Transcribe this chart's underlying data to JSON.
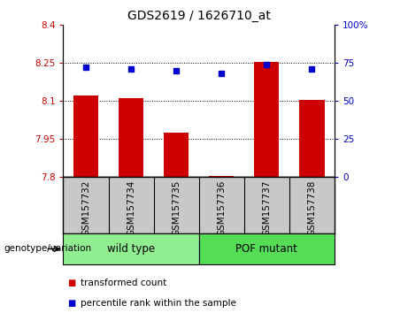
{
  "title": "GDS2619 / 1626710_at",
  "samples": [
    "GSM157732",
    "GSM157734",
    "GSM157735",
    "GSM157736",
    "GSM157737",
    "GSM157738"
  ],
  "transformed_counts": [
    8.12,
    8.11,
    7.975,
    7.805,
    8.255,
    8.105
  ],
  "percentile_ranks": [
    72,
    71,
    70,
    68,
    74,
    71
  ],
  "ylim_left": [
    7.8,
    8.4
  ],
  "ylim_right": [
    0,
    100
  ],
  "yticks_left": [
    7.8,
    7.95,
    8.1,
    8.25,
    8.4
  ],
  "yticks_right": [
    0,
    25,
    50,
    75,
    100
  ],
  "ytick_labels_left": [
    "7.8",
    "7.95",
    "8.1",
    "8.25",
    "8.4"
  ],
  "ytick_labels_right": [
    "0",
    "25",
    "50",
    "75",
    "100%"
  ],
  "bar_color": "#CC0000",
  "dot_color": "#0000CC",
  "bar_bottom": 7.8,
  "grid_lines": [
    7.95,
    8.1,
    8.25
  ],
  "tick_label_area_color": "#c8c8c8",
  "group_box_color": "#90EE90",
  "group_box_color_2": "#55DD55",
  "legend_red_label": "transformed count",
  "legend_blue_label": "percentile rank within the sample",
  "genotype_label": "genotype/variation",
  "group_info": [
    {
      "start": 0,
      "end": 2,
      "label": "wild type"
    },
    {
      "start": 3,
      "end": 5,
      "label": "POF mutant"
    }
  ]
}
